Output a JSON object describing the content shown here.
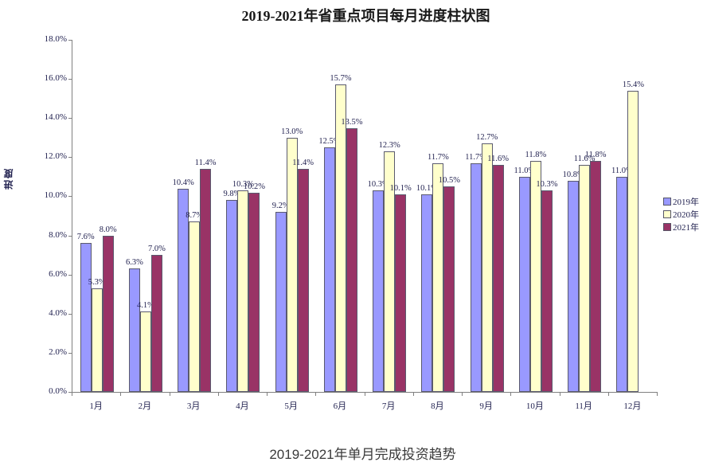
{
  "header": {
    "title": "2019-2021年省重点项目每月进度柱状图"
  },
  "footer": {
    "caption": "2019-2021年单月完成投资趋势"
  },
  "chart_data": {
    "type": "bar",
    "title": "2019-2021年省重点项目每月进度柱状图",
    "xlabel": "",
    "ylabel": "进度",
    "ylim": [
      0,
      18
    ],
    "ytick_step": 2,
    "ytick_labels": [
      "0.0%",
      "2.0%",
      "4.0%",
      "6.0%",
      "8.0%",
      "10.0%",
      "12.0%",
      "14.0%",
      "16.0%",
      "18.0%"
    ],
    "grid": false,
    "legend_position": "right",
    "value_suffix": "%",
    "categories": [
      "1月",
      "2月",
      "3月",
      "4月",
      "5月",
      "6月",
      "7月",
      "8月",
      "9月",
      "10月",
      "11月",
      "12月"
    ],
    "series": [
      {
        "name": "2019年",
        "color": "#9999FF",
        "values": [
          7.6,
          6.3,
          10.4,
          9.8,
          9.2,
          12.5,
          10.3,
          10.1,
          11.7,
          11.0,
          10.8,
          11.0
        ],
        "labels": [
          "7.6%",
          "6.3%",
          "10.4%",
          "9.8%",
          "9.2%",
          "12.5%",
          "10.3%",
          "10.1%",
          "11.7%",
          "11.0%",
          "10.8%",
          "11.0%"
        ]
      },
      {
        "name": "2020年",
        "color": "#FFFFCC",
        "values": [
          5.3,
          4.1,
          8.7,
          10.3,
          13.0,
          15.7,
          12.3,
          11.7,
          12.7,
          11.8,
          11.6,
          15.4
        ],
        "labels": [
          "5.3%",
          "4.1%",
          "8.7%",
          "10.3%",
          "13.0%",
          "15.7%",
          "12.3%",
          "11.7%",
          "12.7%",
          "11.8%",
          "11.6%",
          "15.4%"
        ]
      },
      {
        "name": "2021年",
        "color": "#993366",
        "values": [
          8.0,
          7.0,
          11.4,
          10.2,
          11.4,
          13.5,
          10.1,
          10.5,
          11.6,
          10.3,
          11.8,
          null
        ],
        "labels": [
          "8.0%",
          "7.0%",
          "11.4%",
          "10.2%",
          "11.4%",
          "13.5%",
          "10.1%",
          "10.5%",
          "11.6%",
          "10.3%",
          "11.8%",
          null
        ]
      }
    ]
  }
}
